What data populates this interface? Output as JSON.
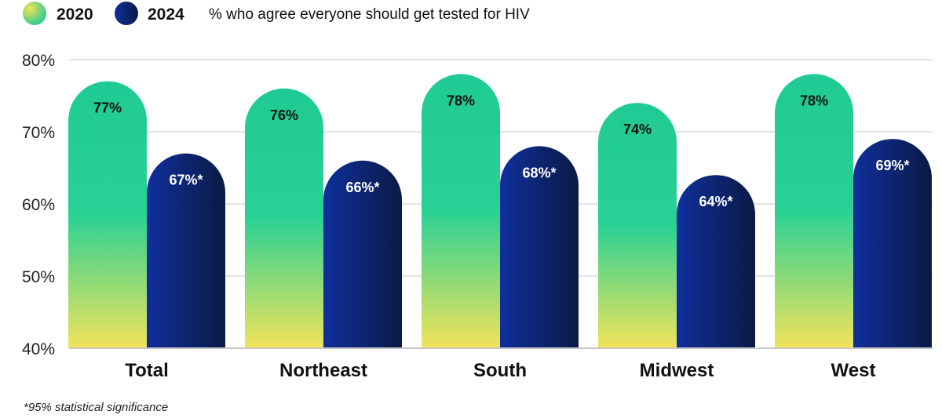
{
  "chart_data": {
    "type": "bar",
    "title": "% who agree everyone should get tested for HIV",
    "categories": [
      "Total",
      "Northeast",
      "South",
      "Midwest",
      "West"
    ],
    "series": [
      {
        "name": "2020",
        "values": [
          77,
          76,
          78,
          74,
          78
        ],
        "labels": [
          "77%",
          "76%",
          "78%",
          "74%",
          "78%"
        ]
      },
      {
        "name": "2024",
        "values": [
          67,
          66,
          68,
          64,
          69
        ],
        "labels": [
          "67%*",
          "66%*",
          "68%*",
          "64%*",
          "69%*"
        ]
      }
    ],
    "yticks": [
      "80%",
      "70%",
      "60%",
      "50%",
      "40%"
    ],
    "ytick_values": [
      80,
      70,
      60,
      50,
      40
    ],
    "ylim": [
      40,
      80
    ],
    "grid": true,
    "legend": "top-left",
    "footnote": "*95% statistical significance"
  },
  "colors": {
    "series_2020_top": "#1fca94",
    "series_2020_bottom": "#f2e35a",
    "series_2024_left": "#0f2f9c",
    "series_2024_right": "#0a1a44",
    "grid": "#d9d9d9",
    "axis": "#c8c8c8"
  }
}
